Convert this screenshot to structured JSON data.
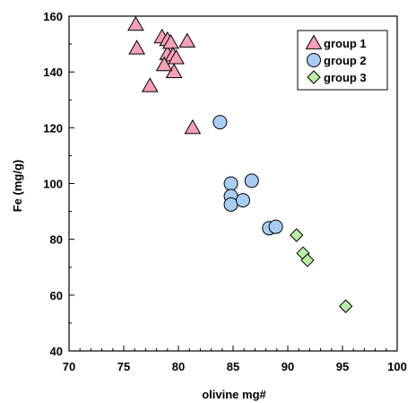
{
  "chart_data": {
    "type": "scatter",
    "xlabel": "olivine mg#",
    "ylabel": "Fe (mg/g)",
    "xlim": [
      70,
      100
    ],
    "ylim": [
      40,
      160
    ],
    "x_ticks": [
      70,
      75,
      80,
      85,
      90,
      95,
      100
    ],
    "y_ticks": [
      40,
      60,
      80,
      100,
      120,
      140,
      160
    ],
    "x_tick_labels": [
      "70",
      "75",
      "80",
      "85",
      "90",
      "95",
      "100"
    ],
    "y_tick_labels": [
      "40",
      "60",
      "80",
      "100",
      "120",
      "140",
      "160"
    ],
    "grid": false,
    "legend_position": "top-right",
    "series": [
      {
        "name": "group 1",
        "marker": "triangle",
        "color": "#f4a0b6",
        "points": [
          [
            76.1,
            157
          ],
          [
            76.2,
            148.5
          ],
          [
            78.5,
            152.5
          ],
          [
            79.0,
            151.5
          ],
          [
            79.0,
            146.5
          ],
          [
            79.3,
            150.5
          ],
          [
            79.5,
            146.0
          ],
          [
            79.8,
            145.0
          ],
          [
            79.6,
            140.0
          ],
          [
            78.7,
            142.5
          ],
          [
            77.4,
            135.0
          ],
          [
            80.8,
            151.0
          ],
          [
            81.3,
            120.0
          ]
        ]
      },
      {
        "name": "group 2",
        "marker": "circle",
        "color": "#a8cdf2",
        "points": [
          [
            83.8,
            122.0
          ],
          [
            84.8,
            100.0
          ],
          [
            84.8,
            95.5
          ],
          [
            84.8,
            92.5
          ],
          [
            85.9,
            94.0
          ],
          [
            86.7,
            101.0
          ],
          [
            88.3,
            84.0
          ],
          [
            88.9,
            84.5
          ]
        ]
      },
      {
        "name": "group 3",
        "marker": "diamond",
        "color": "#b9efa5",
        "points": [
          [
            90.8,
            81.5
          ],
          [
            91.4,
            75.0
          ],
          [
            91.8,
            72.5
          ],
          [
            95.3,
            56.0
          ]
        ]
      }
    ]
  }
}
